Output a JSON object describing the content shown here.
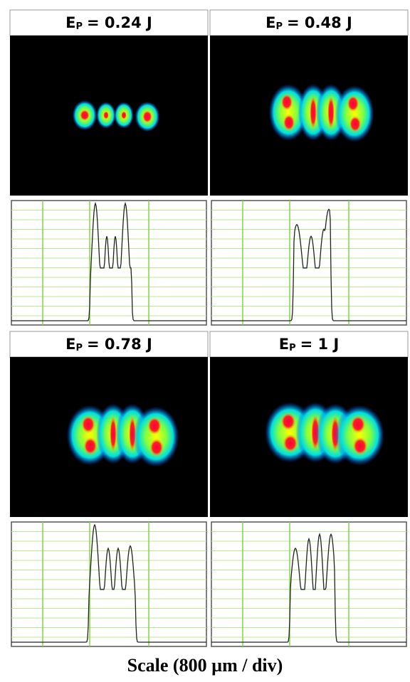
{
  "panels": [
    {
      "symbol": "E",
      "subscript": "P",
      "value": "= 0.24 J"
    },
    {
      "symbol": "E",
      "subscript": "P",
      "value": "= 0.48 J"
    },
    {
      "symbol": "E",
      "subscript": "P",
      "value": "= 0.78 J"
    },
    {
      "symbol": "E",
      "subscript": "P",
      "value": "= 1 J"
    }
  ],
  "caption": "Scale (800 µm / div)"
}
